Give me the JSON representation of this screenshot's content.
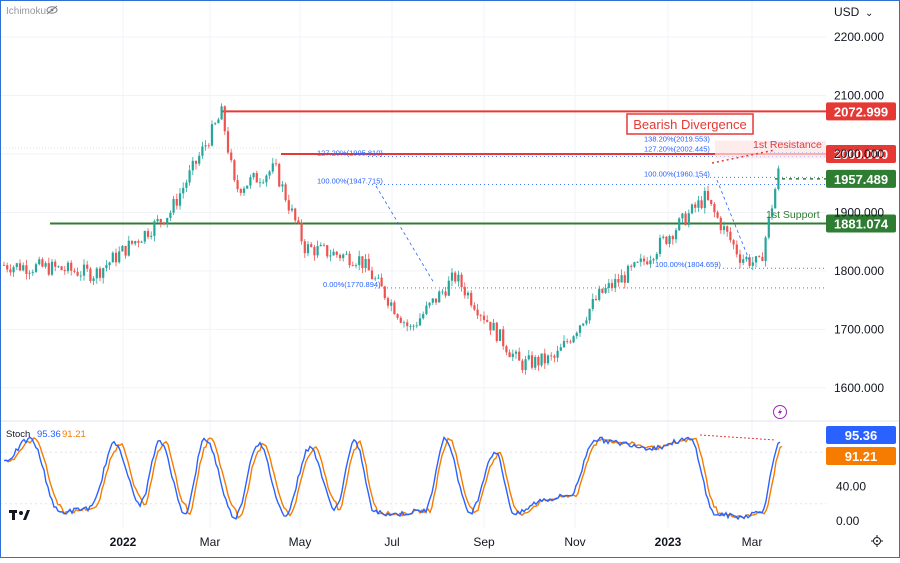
{
  "header": {
    "indicator_name": "Ichimoku",
    "currency": "USD"
  },
  "icons": {
    "eye": "eye-icon",
    "lightning": "lightning-icon",
    "logo": "tradingview-logo",
    "settings": "settings-gear-icon"
  },
  "colors": {
    "up": "#26a69a",
    "down": "#ef5350",
    "resistance": "#e53935",
    "support": "#2e7d32",
    "fib": "#2962ff",
    "stoch_k": "#2962ff",
    "stoch_d": "#f57c00",
    "divergence": "#e53935"
  },
  "annotations": {
    "bearish_divergence": "Bearish Divergence",
    "resistance_label": "1st Resistance",
    "support_label": "1st Support",
    "fib_labels": [
      "138.20%(2019.553)",
      "127.20%(2002.445)",
      "127.20%(1995.810)",
      "100.00%(1947.715)",
      "100.00%(1960.154)",
      "100.00%(1804.659)",
      "0.00%(1770.894)"
    ]
  },
  "price_badges": [
    "2072.999",
    "2000.000",
    "1957.489",
    "1881.074"
  ],
  "stoch": {
    "label": "Stoch",
    "k_value": "95.36",
    "d_value": "91.21"
  },
  "chart_data": {
    "type": "candlestick",
    "price_axis": {
      "unit": "USD",
      "ticks": [
        "2200.000",
        "2100.000",
        "2000.000",
        "1900.000",
        "1800.000",
        "1700.000",
        "1600.000"
      ],
      "range": [
        1560,
        2230
      ]
    },
    "time_axis": {
      "ticks": [
        "2022",
        "Mar",
        "May",
        "Jul",
        "Sep",
        "Nov",
        "2023",
        "Mar"
      ]
    },
    "approx_close_path": [
      [
        "Nov 2021",
        1810
      ],
      [
        "Dec 2021",
        1805
      ],
      [
        "Jan 2022",
        1795
      ],
      [
        "Feb 2022",
        1900
      ],
      [
        "Mar 2022 (peak)",
        2070
      ],
      [
        "Mar 2022",
        1940
      ],
      [
        "Apr 2022",
        1975
      ],
      [
        "May 2022",
        1840
      ],
      [
        "Jun 2022",
        1820
      ],
      [
        "Jul 2022",
        1700
      ],
      [
        "Aug 2022",
        1790
      ],
      [
        "Sep 2022",
        1640
      ],
      [
        "Oct 2022",
        1650
      ],
      [
        "Nov 2022",
        1760
      ],
      [
        "Dec 2022",
        1810
      ],
      [
        "Jan 2023",
        1925
      ],
      [
        "Feb 2023",
        1825
      ],
      [
        "Mar 2023 (low)",
        1810
      ],
      [
        "Mar 2023 (last)",
        1990
      ]
    ],
    "levels": [
      {
        "name": "Resistance high",
        "value": 2072.999
      },
      {
        "name": "1st Resistance",
        "value": 2000.0
      },
      {
        "name": "Level",
        "value": 1957.489
      },
      {
        "name": "1st Support",
        "value": 1881.074
      }
    ],
    "fibonacci": [
      {
        "label": "138.20%",
        "value": 2019.553
      },
      {
        "label": "127.20%",
        "value": 2002.445
      },
      {
        "label": "127.20%",
        "value": 1995.81
      },
      {
        "label": "100.00%",
        "value": 1947.715
      },
      {
        "label": "100.00%",
        "value": 1960.154
      },
      {
        "label": "100.00%",
        "value": 1804.659
      },
      {
        "label": "0.00%",
        "value": 1770.894
      }
    ],
    "stochastic": {
      "k_last": 95.36,
      "d_last": 91.21,
      "ticks": [
        "40.00",
        "0.00"
      ],
      "range": [
        0,
        100
      ]
    }
  }
}
